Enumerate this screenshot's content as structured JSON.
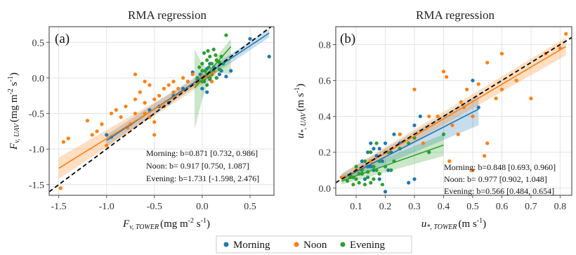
{
  "legend": {
    "items": [
      {
        "label": "Morning",
        "color": "#1f77b4"
      },
      {
        "label": "Noon",
        "color": "#ff7f0e"
      },
      {
        "label": "Evening",
        "color": "#2ca02c"
      }
    ]
  },
  "chart_data": [
    {
      "type": "scatter",
      "panel_label": "(a)",
      "title": "RMA regression",
      "xlabel_main": "F",
      "xlabel_sub": "v, TOWER",
      "xlabel_unit": "(mg m",
      "xlabel_exp": "-2",
      "xlabel_unit2": " s",
      "xlabel_exp2": "-1",
      "xlabel_close": ")",
      "ylabel_main": "F",
      "ylabel_sub": "v, UAV",
      "ylabel_unit": "(mg m",
      "ylabel_exp": "-2",
      "ylabel_unit2": " s",
      "ylabel_exp2": "-1",
      "ylabel_close": ")",
      "xlim": [
        -1.6,
        0.75
      ],
      "ylim": [
        -1.65,
        0.72
      ],
      "xticks": [
        -1.5,
        -1.0,
        -0.5,
        0.0,
        0.5
      ],
      "xtick_labels": [
        "-1.5",
        "-1.0",
        "-0.5",
        "0.0",
        "0.5"
      ],
      "yticks": [
        -1.5,
        -1.0,
        -0.5,
        0.0,
        0.5
      ],
      "ytick_labels": [
        "-1.5",
        "-1.0",
        "-0.5",
        "0.0",
        "0.5"
      ],
      "grid": true,
      "identity_line": true,
      "stats_text": [
        "Morning: b=0.871 [0.732, 0.986]",
        "Noon: b= 0.917 [0.750, 1.087]",
        "Evening: b=1.731 [-1.598, 2.476]"
      ],
      "series": [
        {
          "name": "Morning",
          "color": "#1f77b4",
          "fit": {
            "x": [
              -1.0,
              0.7
            ],
            "y": [
              -0.88,
              0.63
            ]
          },
          "band": {
            "x": [
              -1.0,
              0.7
            ],
            "lower": [
              -0.96,
              0.57
            ],
            "upper": [
              -0.8,
              0.69
            ]
          },
          "points": [
            [
              -1.0,
              -0.8
            ],
            [
              -0.95,
              -0.83
            ],
            [
              -0.55,
              -0.45
            ],
            [
              -0.45,
              -0.4
            ],
            [
              -0.35,
              -0.35
            ],
            [
              -0.2,
              -0.15
            ],
            [
              -0.15,
              -0.05
            ],
            [
              -0.1,
              0.08
            ],
            [
              -0.05,
              -0.02
            ],
            [
              -0.02,
              0.05
            ],
            [
              0.0,
              0.02
            ],
            [
              0.02,
              -0.05
            ],
            [
              0.03,
              0.1
            ],
            [
              0.05,
              0.02
            ],
            [
              0.05,
              0.13
            ],
            [
              0.08,
              -0.02
            ],
            [
              0.1,
              0.05
            ],
            [
              0.1,
              -0.05
            ],
            [
              0.12,
              0.15
            ],
            [
              0.15,
              0.0
            ],
            [
              0.18,
              0.05
            ],
            [
              0.2,
              0.1
            ],
            [
              0.25,
              0.02
            ],
            [
              0.3,
              0.1
            ],
            [
              0.5,
              0.55
            ],
            [
              0.7,
              0.3
            ],
            [
              0.0,
              -0.15
            ],
            [
              0.05,
              -0.2
            ],
            [
              -0.3,
              -0.25
            ],
            [
              0.08,
              0.2
            ]
          ]
        },
        {
          "name": "Noon",
          "color": "#ff7f0e",
          "fit": {
            "x": [
              -1.5,
              0.15
            ],
            "y": [
              -1.27,
              0.1
            ]
          },
          "band": {
            "x": [
              -1.5,
              0.15
            ],
            "lower": [
              -1.42,
              0.04
            ],
            "upper": [
              -1.12,
              0.16
            ]
          },
          "points": [
            [
              -1.48,
              -1.55
            ],
            [
              -1.45,
              -0.9
            ],
            [
              -1.4,
              -0.85
            ],
            [
              -1.2,
              -0.6
            ],
            [
              -1.1,
              -0.75
            ],
            [
              -1.05,
              -0.65
            ],
            [
              -1.0,
              -0.95
            ],
            [
              -0.95,
              -0.5
            ],
            [
              -0.9,
              -0.45
            ],
            [
              -0.85,
              -0.55
            ],
            [
              -0.8,
              -0.4
            ],
            [
              -0.78,
              -0.7
            ],
            [
              -0.75,
              -0.65
            ],
            [
              -0.7,
              -0.3
            ],
            [
              -0.7,
              -0.5
            ],
            [
              -0.65,
              -0.2
            ],
            [
              -0.6,
              -0.35
            ],
            [
              -0.6,
              -0.5
            ],
            [
              -0.55,
              -0.1
            ],
            [
              -0.55,
              -0.55
            ],
            [
              -0.5,
              -0.8
            ],
            [
              -0.5,
              -0.3
            ],
            [
              -0.45,
              -0.25
            ],
            [
              -0.4,
              -0.15
            ],
            [
              -0.4,
              -0.4
            ],
            [
              -0.35,
              -0.1
            ],
            [
              -0.3,
              -0.2
            ],
            [
              -0.3,
              -0.05
            ],
            [
              -0.25,
              -0.15
            ],
            [
              -0.2,
              0.0
            ],
            [
              -0.15,
              -0.05
            ],
            [
              -0.1,
              0.05
            ],
            [
              -0.05,
              -0.05
            ],
            [
              0.0,
              0.02
            ],
            [
              0.05,
              0.05
            ],
            [
              -0.7,
              0.05
            ],
            [
              -0.6,
              -0.05
            ],
            [
              -1.15,
              -0.8
            ],
            [
              -0.5,
              -0.62
            ],
            [
              0.1,
              -0.05
            ]
          ]
        },
        {
          "name": "Evening",
          "color": "#2ca02c",
          "fit": {
            "x": [
              -0.08,
              0.3
            ],
            "y": [
              -0.14,
              0.44
            ]
          },
          "band": {
            "x": [
              -0.08,
              0.0,
              0.08,
              0.15,
              0.3
            ],
            "lower": [
              -0.72,
              -0.3,
              -0.02,
              0.08,
              0.05
            ],
            "upper": [
              0.4,
              0.2,
              0.08,
              0.3,
              0.55
            ]
          },
          "points": [
            [
              -0.05,
              0.0
            ],
            [
              -0.03,
              0.15
            ],
            [
              0.0,
              0.2
            ],
            [
              0.0,
              -0.05
            ],
            [
              0.02,
              0.35
            ],
            [
              0.03,
              0.1
            ],
            [
              0.05,
              0.25
            ],
            [
              0.05,
              -0.1
            ],
            [
              0.07,
              0.15
            ],
            [
              0.08,
              0.3
            ],
            [
              0.1,
              0.05
            ],
            [
              0.1,
              0.2
            ],
            [
              0.12,
              0.4
            ],
            [
              0.12,
              0.1
            ],
            [
              0.15,
              0.25
            ],
            [
              0.15,
              0.0
            ],
            [
              0.18,
              0.12
            ],
            [
              0.2,
              0.3
            ],
            [
              0.22,
              0.2
            ],
            [
              0.25,
              0.6
            ],
            [
              0.05,
              0.05
            ],
            [
              0.08,
              0.0
            ],
            [
              0.02,
              -0.02
            ],
            [
              0.14,
              0.32
            ],
            [
              0.18,
              0.22
            ],
            [
              0.0,
              0.1
            ],
            [
              0.06,
              0.38
            ]
          ]
        }
      ]
    },
    {
      "type": "scatter",
      "panel_label": "(b)",
      "title": "RMA regression",
      "xlabel_main": "u",
      "xlabel_sub": "*, TOWER",
      "xlabel_unit": "(m s",
      "xlabel_exp": "-1",
      "xlabel_close": ")",
      "ylabel_main": "u",
      "ylabel_sub": "*, UAV",
      "ylabel_unit": "(m s",
      "ylabel_exp": "-1",
      "ylabel_close": ")",
      "xlim": [
        0.03,
        0.84
      ],
      "ylim": [
        -0.04,
        0.9
      ],
      "xticks": [
        0.1,
        0.2,
        0.3,
        0.4,
        0.5,
        0.6,
        0.7,
        0.8
      ],
      "xtick_labels": [
        "0.1",
        "0.2",
        "0.3",
        "0.4",
        "0.5",
        "0.6",
        "0.7",
        "0.8"
      ],
      "yticks": [
        0.0,
        0.2,
        0.4,
        0.6,
        0.8
      ],
      "ytick_labels": [
        "0.0",
        "0.2",
        "0.4",
        "0.6",
        "0.8"
      ],
      "grid": true,
      "identity_line": true,
      "stats_text": [
        "Morning: b=0.848 [0.693, 0.960]",
        "Noon: b= 0.977 [0.902, 1.048]",
        "Evening: b=0.566 [0.484, 0.654]"
      ],
      "series": [
        {
          "name": "Morning",
          "color": "#1f77b4",
          "fit": {
            "x": [
              0.05,
              0.52
            ],
            "y": [
              0.05,
              0.44
            ]
          },
          "band": {
            "x": [
              0.05,
              0.52
            ],
            "lower": [
              0.03,
              0.35
            ],
            "upper": [
              0.08,
              0.52
            ]
          },
          "points": [
            [
              0.08,
              0.07
            ],
            [
              0.1,
              0.1
            ],
            [
              0.12,
              0.15
            ],
            [
              0.12,
              0.08
            ],
            [
              0.14,
              0.2
            ],
            [
              0.15,
              0.12
            ],
            [
              0.15,
              0.25
            ],
            [
              0.16,
              0.1
            ],
            [
              0.17,
              0.18
            ],
            [
              0.18,
              0.22
            ],
            [
              0.18,
              0.05
            ],
            [
              0.19,
              0.15
            ],
            [
              0.2,
              0.25
            ],
            [
              0.2,
              -0.02
            ],
            [
              0.21,
              0.1
            ],
            [
              0.22,
              0.2
            ],
            [
              0.23,
              0.3
            ],
            [
              0.25,
              0.25
            ],
            [
              0.28,
              0.03
            ],
            [
              0.3,
              0.35
            ],
            [
              0.3,
              0.05
            ],
            [
              0.35,
              0.2
            ],
            [
              0.4,
              0.3
            ],
            [
              0.5,
              0.6
            ],
            [
              0.52,
              0.45
            ],
            [
              0.13,
              0.05
            ],
            [
              0.16,
              0.22
            ],
            [
              0.14,
              0.12
            ],
            [
              0.25,
              0.3
            ],
            [
              0.32,
              0.4
            ]
          ]
        },
        {
          "name": "Noon",
          "color": "#ff7f0e",
          "fit": {
            "x": [
              0.05,
              0.82
            ],
            "y": [
              0.05,
              0.79
            ]
          },
          "band": {
            "x": [
              0.05,
              0.82
            ],
            "lower": [
              0.03,
              0.74
            ],
            "upper": [
              0.08,
              0.84
            ]
          },
          "points": [
            [
              0.05,
              0.06
            ],
            [
              0.1,
              0.1
            ],
            [
              0.15,
              0.15
            ],
            [
              0.2,
              0.2
            ],
            [
              0.25,
              0.3
            ],
            [
              0.3,
              0.55
            ],
            [
              0.35,
              0.4
            ],
            [
              0.4,
              0.65
            ],
            [
              0.41,
              0.62
            ],
            [
              0.42,
              0.15
            ],
            [
              0.45,
              0.3
            ],
            [
              0.47,
              0.45
            ],
            [
              0.48,
              0.55
            ],
            [
              0.5,
              0.4
            ],
            [
              0.5,
              0.1
            ],
            [
              0.52,
              0.58
            ],
            [
              0.55,
              0.25
            ],
            [
              0.55,
              0.7
            ],
            [
              0.58,
              0.5
            ],
            [
              0.6,
              0.75
            ],
            [
              0.6,
              0.55
            ],
            [
              0.65,
              0.6
            ],
            [
              0.7,
              0.5
            ],
            [
              0.75,
              0.75
            ],
            [
              0.8,
              0.78
            ],
            [
              0.82,
              0.86
            ],
            [
              0.38,
              0.4
            ],
            [
              0.43,
              0.35
            ],
            [
              0.33,
              0.25
            ],
            [
              0.46,
              0.48
            ],
            [
              0.54,
              0.18
            ]
          ]
        },
        {
          "name": "Evening",
          "color": "#2ca02c",
          "fit": {
            "x": [
              0.05,
              0.4
            ],
            "y": [
              0.04,
              0.24
            ]
          },
          "band": {
            "x": [
              0.05,
              0.4
            ],
            "lower": [
              0.02,
              0.18
            ],
            "upper": [
              0.07,
              0.3
            ]
          },
          "points": [
            [
              0.07,
              0.04
            ],
            [
              0.08,
              0.06
            ],
            [
              0.09,
              0.02
            ],
            [
              0.1,
              0.05
            ],
            [
              0.1,
              0.12
            ],
            [
              0.11,
              0.03
            ],
            [
              0.12,
              0.08
            ],
            [
              0.12,
              0.1
            ],
            [
              0.13,
              0.02
            ],
            [
              0.13,
              0.15
            ],
            [
              0.14,
              0.06
            ],
            [
              0.14,
              0.09
            ],
            [
              0.15,
              0.2
            ],
            [
              0.15,
              0.03
            ],
            [
              0.16,
              0.12
            ],
            [
              0.16,
              0.05
            ],
            [
              0.17,
              0.1
            ],
            [
              0.17,
              0.25
            ],
            [
              0.18,
              0.08
            ],
            [
              0.18,
              0.15
            ],
            [
              0.19,
              0.02
            ],
            [
              0.2,
              0.12
            ],
            [
              0.21,
              0.2
            ],
            [
              0.22,
              0.1
            ],
            [
              0.23,
              0.15
            ],
            [
              0.25,
              0.22
            ],
            [
              0.28,
              0.25
            ],
            [
              0.3,
              0.28
            ],
            [
              0.35,
              0.2
            ],
            [
              0.4,
              0.3
            ],
            [
              0.11,
              0.08
            ],
            [
              0.09,
              0.06
            ]
          ]
        }
      ]
    }
  ]
}
